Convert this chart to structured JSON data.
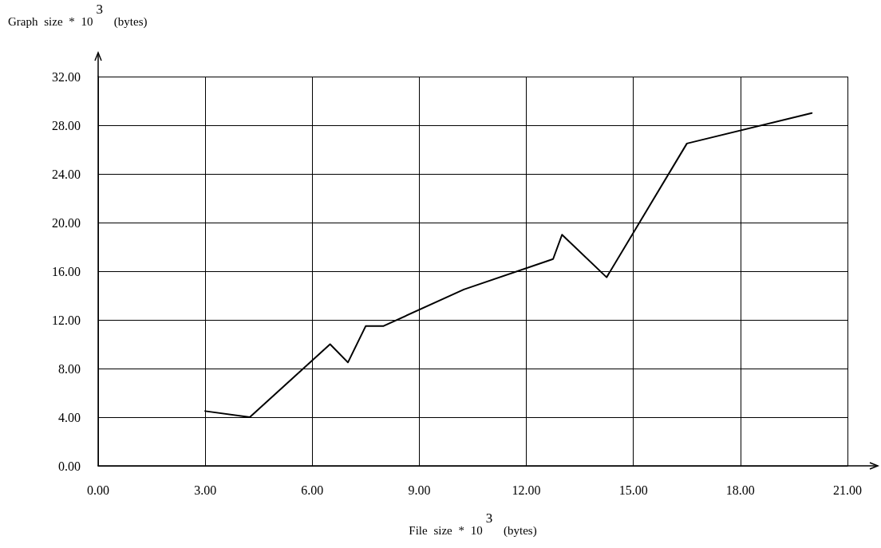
{
  "chart_data": {
    "type": "line",
    "xlabel": "File size * 10$^{3}$ (bytes)",
    "ylabel": "Graph size * 10$^{3}$ (bytes)",
    "x": [
      3.0,
      4.25,
      6.5,
      7.0,
      7.5,
      8.0,
      10.25,
      12.75,
      13.0,
      14.25,
      16.5,
      20.0
    ],
    "series": [
      {
        "color": "#000000",
        "values": [
          4.5,
          4.0,
          10.0,
          8.5,
          11.5,
          11.5,
          14.5,
          17.0,
          19.0,
          15.5,
          26.5,
          29.0
        ]
      }
    ],
    "xlim": [
      0,
      21
    ],
    "xticks": [
      {
        "value": 0,
        "label": "0.00"
      },
      {
        "value": 3,
        "label": "3.00"
      },
      {
        "value": 6,
        "label": "6.00"
      },
      {
        "value": 9,
        "label": "9.00"
      },
      {
        "value": 12,
        "label": "12.00"
      },
      {
        "value": 15,
        "label": "15.00"
      },
      {
        "value": 18,
        "label": "18.00"
      },
      {
        "value": 21,
        "label": "21.00"
      }
    ],
    "ylim": [
      0,
      32
    ],
    "yticks": [
      {
        "value": 0,
        "label": "0.00"
      },
      {
        "value": 4,
        "label": "4.00"
      },
      {
        "value": 8,
        "label": "8.00"
      },
      {
        "value": 12,
        "label": "12.00"
      },
      {
        "value": 16,
        "label": "16.00"
      },
      {
        "value": 20,
        "label": "20.00"
      },
      {
        "value": 24,
        "label": "24.00"
      },
      {
        "value": 28,
        "label": "28.00"
      },
      {
        "value": 32,
        "label": "32.00"
      }
    ],
    "grid": true,
    "marker": "none",
    "line_style": "solid"
  }
}
